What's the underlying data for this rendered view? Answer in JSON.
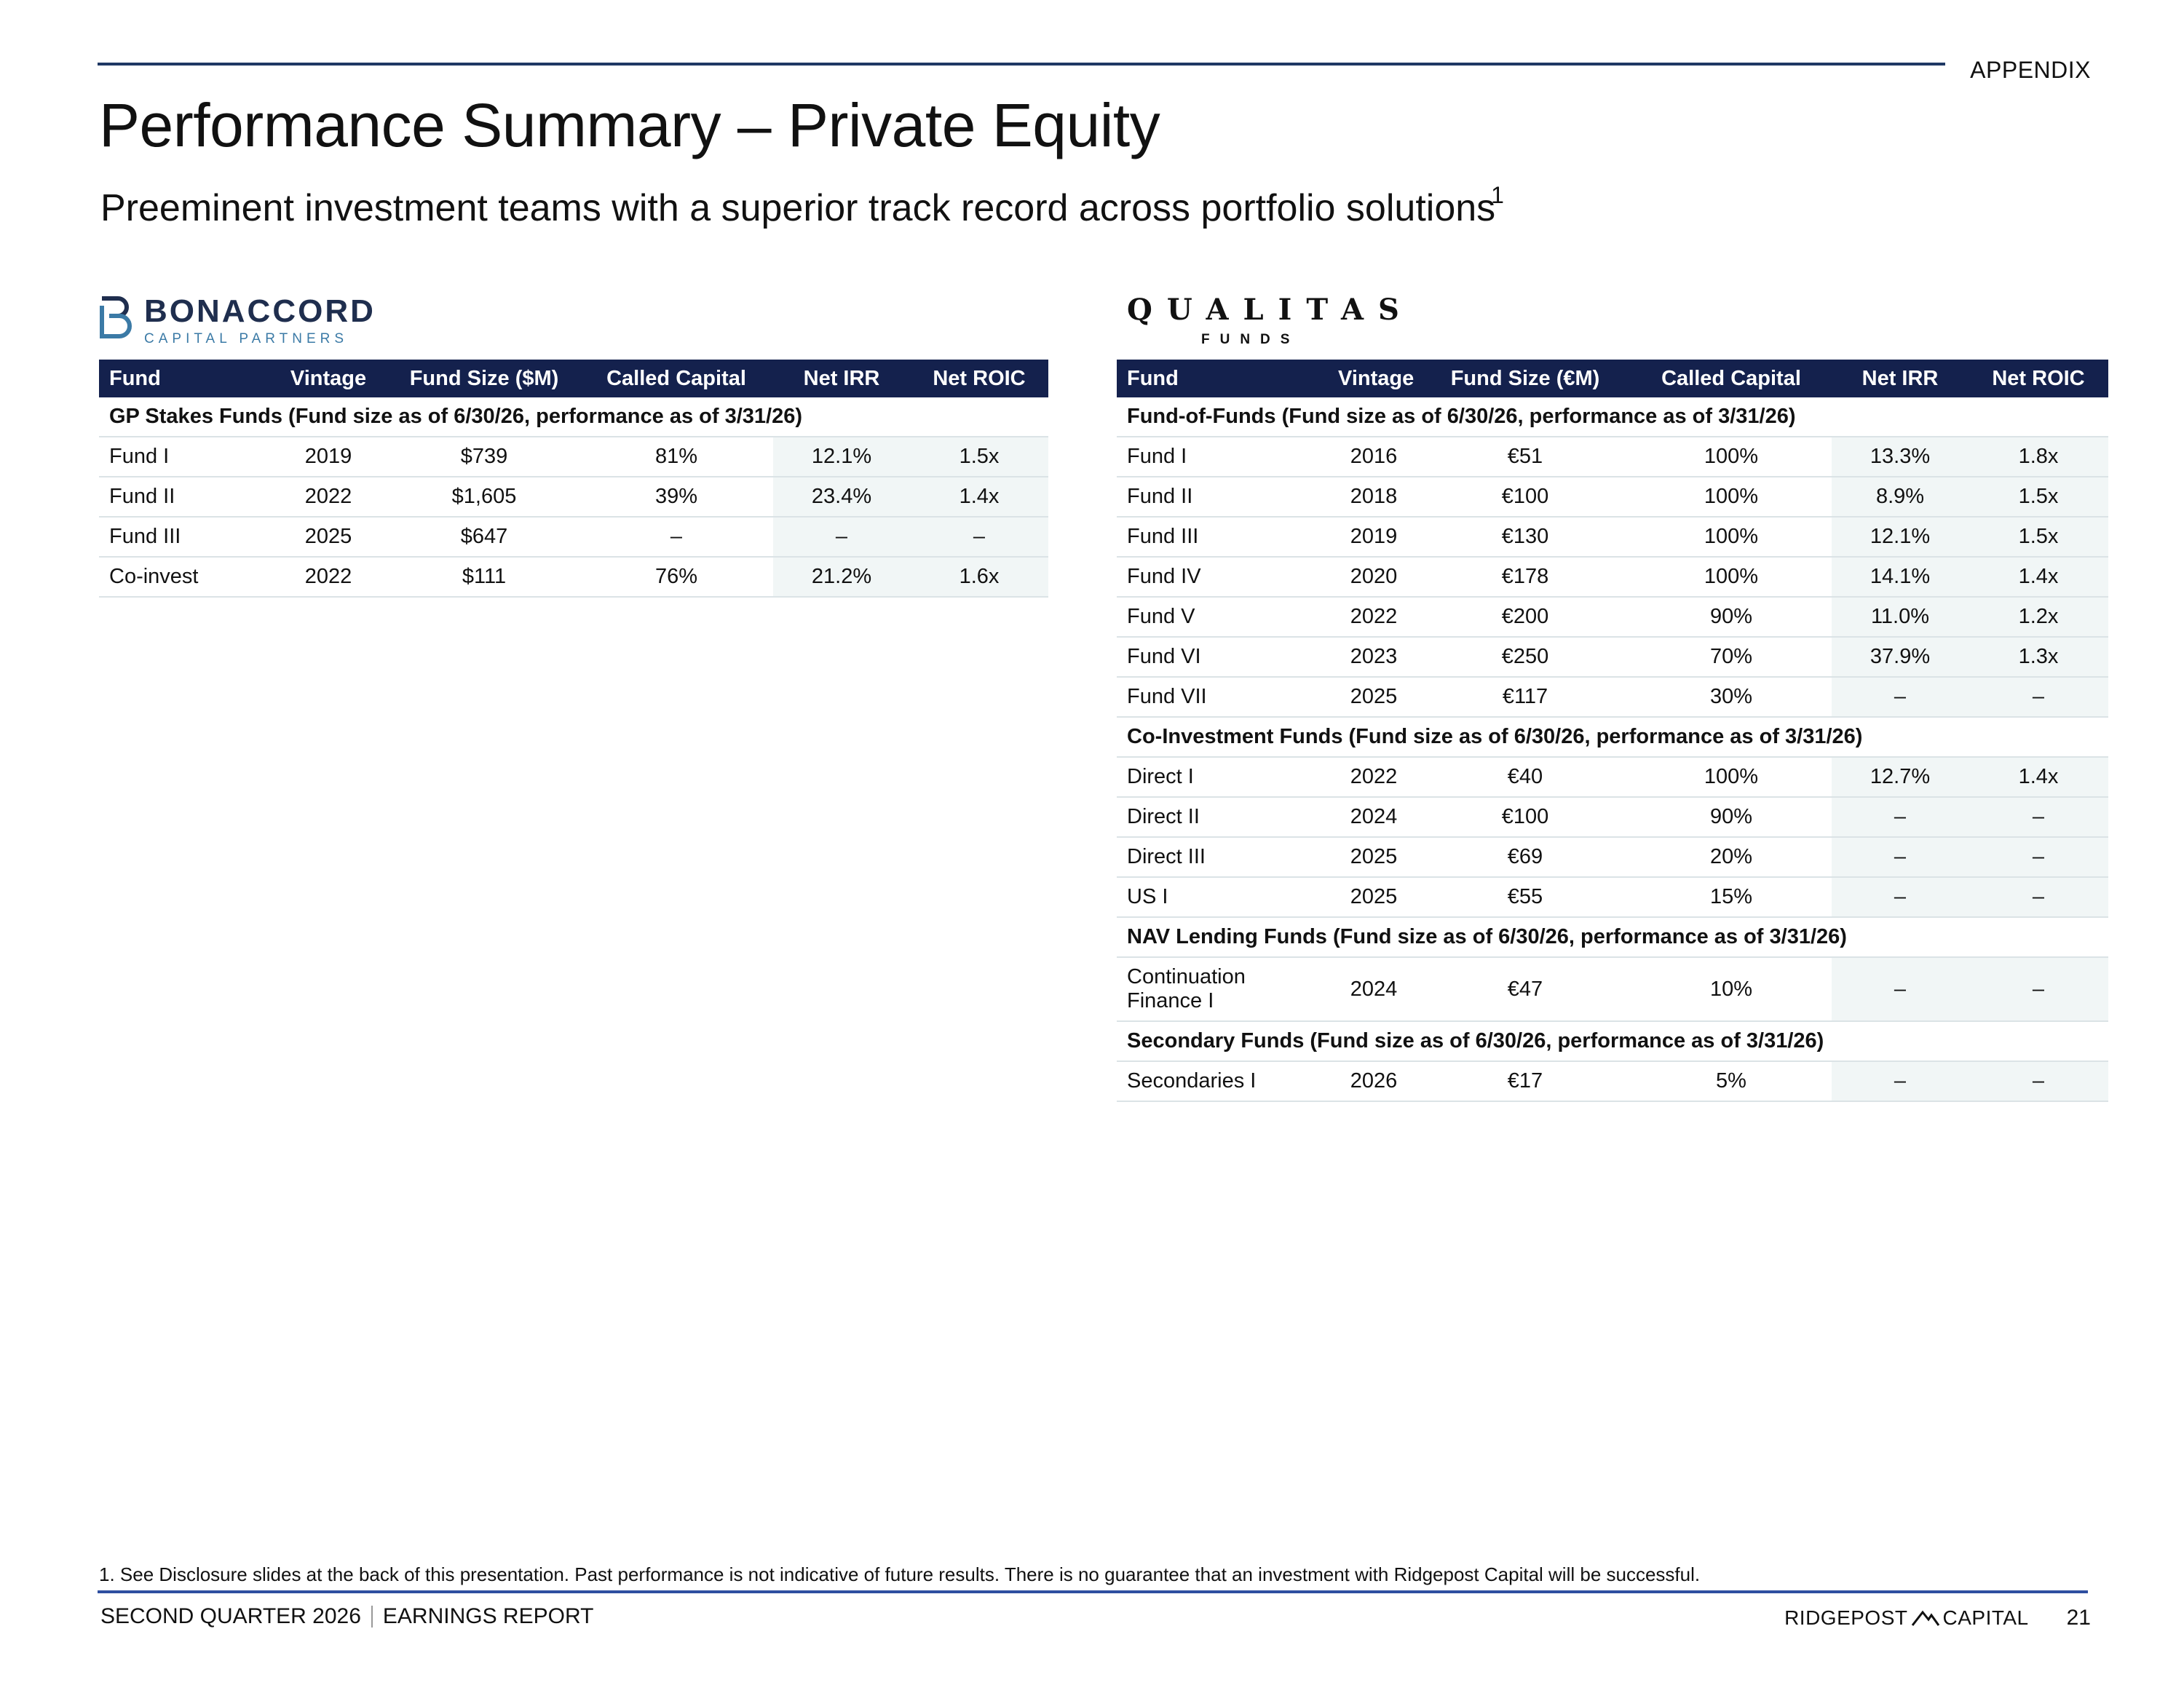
{
  "header": {
    "section_label": "APPENDIX",
    "title": "Performance Summary – Private Equity",
    "subtitle": "Preeminent investment teams with a superior track record across portfolio solutions",
    "subtitle_footnote_ref": "1"
  },
  "left_logo": {
    "name": "BONACCORD",
    "tagline": "CAPITAL PARTNERS",
    "icon": "bonaccord-b-icon"
  },
  "right_logo": {
    "name": "QUALITAS",
    "tagline": "FUNDS"
  },
  "left_table": {
    "headers": [
      "Fund",
      "Vintage",
      "Fund Size ($M)",
      "Called Capital",
      "Net IRR",
      "Net ROIC"
    ],
    "section": "GP Stakes Funds (Fund size as of 6/30/26, performance as of 3/31/26)",
    "rows": [
      [
        "Fund I",
        "2019",
        "$739",
        "81%",
        "12.1%",
        "1.5x"
      ],
      [
        "Fund II",
        "2022",
        "$1,605",
        "39%",
        "23.4%",
        "1.4x"
      ],
      [
        "Fund III",
        "2025",
        "$647",
        "–",
        "–",
        "–"
      ],
      [
        "Co-invest",
        "2022",
        "$111",
        "76%",
        "21.2%",
        "1.6x"
      ]
    ]
  },
  "right_table": {
    "headers": [
      "Fund",
      "Vintage",
      "Fund Size (€M)",
      "Called Capital",
      "Net IRR",
      "Net ROIC"
    ],
    "sections": [
      {
        "title": "Fund-of-Funds (Fund size as of 6/30/26, performance as of 3/31/26)",
        "rows": [
          [
            "Fund I",
            "2016",
            "€51",
            "100%",
            "13.3%",
            "1.8x"
          ],
          [
            "Fund II",
            "2018",
            "€100",
            "100%",
            "8.9%",
            "1.5x"
          ],
          [
            "Fund III",
            "2019",
            "€130",
            "100%",
            "12.1%",
            "1.5x"
          ],
          [
            "Fund IV",
            "2020",
            "€178",
            "100%",
            "14.1%",
            "1.4x"
          ],
          [
            "Fund V",
            "2022",
            "€200",
            "90%",
            "11.0%",
            "1.2x"
          ],
          [
            "Fund VI",
            "2023",
            "€250",
            "70%",
            "37.9%",
            "1.3x"
          ],
          [
            "Fund VII",
            "2025",
            "€117",
            "30%",
            "–",
            "–"
          ]
        ]
      },
      {
        "title": "Co-Investment Funds (Fund size as of 6/30/26, performance as of 3/31/26)",
        "rows": [
          [
            "Direct I",
            "2022",
            "€40",
            "100%",
            "12.7%",
            "1.4x"
          ],
          [
            "Direct II",
            "2024",
            "€100",
            "90%",
            "–",
            "–"
          ],
          [
            "Direct III",
            "2025",
            "€69",
            "20%",
            "–",
            "–"
          ],
          [
            "US I",
            "2025",
            "€55",
            "15%",
            "–",
            "–"
          ]
        ]
      },
      {
        "title": "NAV Lending Funds (Fund size as of 6/30/26, performance as of 3/31/26)",
        "rows": [
          [
            "Continuation Finance I",
            "2024",
            "€47",
            "10%",
            "–",
            "–"
          ]
        ]
      },
      {
        "title": "Secondary Funds (Fund size as of 6/30/26, performance as of 3/31/26)",
        "rows": [
          [
            "Secondaries I",
            "2026",
            "€17",
            "5%",
            "–",
            "–"
          ]
        ]
      }
    ]
  },
  "footer": {
    "footnote": "1.  See Disclosure slides at the back of this presentation. Past performance is not indicative of future results. There is no guarantee that an investment with Ridgepost Capital will be successful.",
    "left_primary": "SECOND QUARTER 2026",
    "left_secondary": "EARNINGS REPORT",
    "brand_left": "RIDGEPOST",
    "brand_right": "CAPITAL",
    "page_number": "21"
  }
}
